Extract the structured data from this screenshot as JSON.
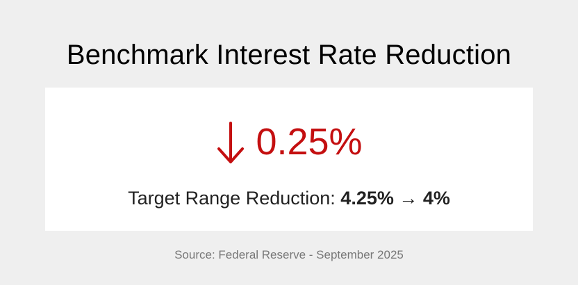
{
  "title": "Benchmark Interest Rate Reduction",
  "change": {
    "icon": "arrow-down-icon",
    "value": "0.25%",
    "color": "#c40f10"
  },
  "range": {
    "label": "Target Range Reduction:",
    "values": "4.25% → 4%"
  },
  "source": "Source: Federal Reserve - September 2025"
}
